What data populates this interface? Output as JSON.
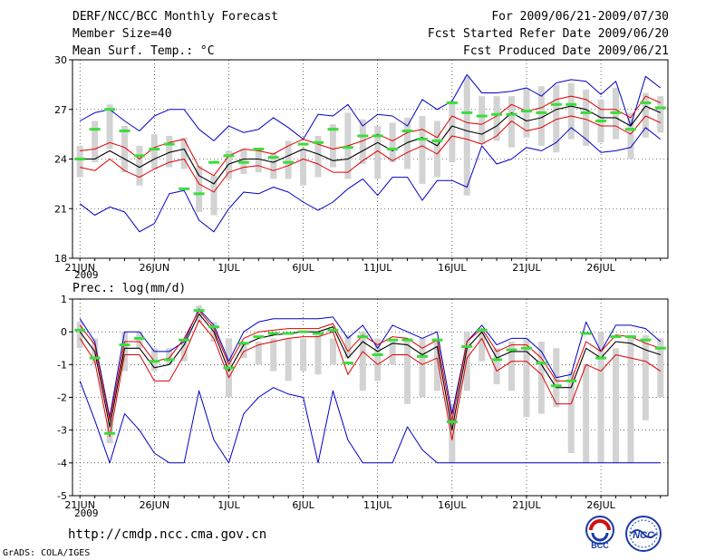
{
  "header": {
    "title": "DERF/NCC/BCC Monthly Forecast",
    "member_size": "Member Size=40",
    "variable": "Mean Surf. Temp.: °C",
    "period": "For 2009/06/21-2009/07/30",
    "started": "Fcst Started Refer Date 2009/06/20",
    "produced": "Fcst Produced Date 2009/06/21"
  },
  "footer": {
    "url": "http://cmdp.ncc.cma.gov.cn",
    "grads": "GrADS: COLA/IGES",
    "logo_bcc": "BCC",
    "logo_ncc": "NCC"
  },
  "colors": {
    "box": "#d3d3d3",
    "median": "#3cdc3c",
    "mean": "#000000",
    "std": "#e00000",
    "range": "#0000c8",
    "grid": "#000000"
  },
  "chart_data": [
    {
      "type": "line",
      "panel": "temperature",
      "title": "",
      "ylabel": "",
      "ylim": [
        18,
        30
      ],
      "yticks": [
        18,
        21,
        24,
        27,
        30
      ],
      "xlim": [
        0.5,
        40.5
      ],
      "xtick_days": [
        1,
        6,
        11,
        16,
        21,
        26,
        31,
        36
      ],
      "xtick_labels": [
        "21JUN",
        "26JUN",
        "1JUL",
        "6JUL",
        "11JUL",
        "16JUL",
        "21JUL",
        "26JUL"
      ],
      "year_label": "2009",
      "days": [
        1,
        2,
        3,
        4,
        5,
        6,
        7,
        8,
        9,
        10,
        11,
        12,
        13,
        14,
        15,
        16,
        17,
        18,
        19,
        20,
        21,
        22,
        23,
        24,
        25,
        26,
        27,
        28,
        29,
        30,
        31,
        32,
        33,
        34,
        35,
        36,
        37,
        38,
        39,
        40
      ],
      "series": [
        {
          "name": "box_top",
          "values": [
            24.8,
            26.3,
            27.3,
            26.0,
            24.8,
            25.5,
            25.4,
            25.3,
            23.6,
            23.0,
            24.5,
            24.6,
            24.6,
            24.4,
            25.1,
            24.6,
            25.4,
            26.1,
            26.8,
            26.4,
            26.0,
            26.2,
            26.5,
            26.6,
            26.3,
            27.5,
            29.0,
            27.8,
            27.8,
            27.8,
            28.3,
            28.4,
            28.5,
            28.6,
            28.2,
            27.6,
            28.3,
            26.8,
            28.0,
            27.8
          ]
        },
        {
          "name": "box_bottom",
          "values": [
            22.9,
            23.8,
            24.6,
            23.2,
            22.4,
            23.4,
            23.5,
            23.4,
            20.8,
            20.6,
            22.8,
            23.1,
            23.2,
            22.8,
            22.8,
            22.4,
            22.9,
            23.5,
            22.8,
            23.7,
            22.8,
            23.8,
            23.4,
            22.5,
            22.9,
            23.8,
            21.8,
            24.9,
            25.1,
            24.7,
            25.3,
            24.8,
            24.4,
            25.2,
            24.8,
            25.0,
            25.2,
            24.0,
            25.3,
            25.6
          ]
        },
        {
          "name": "median",
          "values": [
            24.0,
            25.8,
            27.0,
            25.7,
            24.2,
            24.6,
            24.9,
            22.2,
            21.9,
            23.8,
            24.2,
            23.8,
            24.6,
            24.1,
            23.8,
            24.9,
            25.0,
            25.8,
            24.7,
            25.4,
            25.4,
            24.6,
            25.7,
            25.2,
            25.1,
            27.4,
            26.8,
            26.6,
            26.7,
            26.7,
            26.9,
            26.8,
            27.3,
            27.3,
            26.8,
            26.3,
            26.8,
            25.8,
            27.4,
            27.1
          ]
        },
        {
          "name": "mean",
          "values": [
            24.0,
            24.0,
            24.5,
            24.0,
            23.5,
            24.0,
            24.4,
            24.6,
            23.0,
            22.5,
            23.7,
            24.0,
            24.0,
            23.8,
            24.2,
            24.6,
            24.3,
            23.9,
            24.0,
            24.5,
            25.0,
            24.5,
            25.0,
            25.3,
            24.8,
            26.0,
            25.7,
            25.5,
            26.0,
            26.8,
            26.3,
            26.5,
            27.0,
            27.2,
            27.0,
            26.5,
            26.5,
            26.0,
            27.2,
            26.8
          ]
        },
        {
          "name": "mean_plus_std",
          "values": [
            24.5,
            24.6,
            25.0,
            24.7,
            24.0,
            24.7,
            25.0,
            25.2,
            23.5,
            23.0,
            24.2,
            24.6,
            24.5,
            24.3,
            24.8,
            25.2,
            24.9,
            24.6,
            24.8,
            25.1,
            25.5,
            25.1,
            25.6,
            25.8,
            25.3,
            26.6,
            26.2,
            26.1,
            26.6,
            27.3,
            26.9,
            27.1,
            27.6,
            27.8,
            27.6,
            27.0,
            27.0,
            26.5,
            27.8,
            27.4
          ]
        },
        {
          "name": "mean_minus_std",
          "values": [
            23.5,
            23.3,
            24.0,
            23.3,
            22.9,
            23.4,
            23.8,
            24.0,
            22.5,
            22.0,
            23.2,
            23.5,
            23.6,
            23.3,
            23.6,
            24.0,
            23.7,
            23.2,
            23.2,
            23.9,
            24.5,
            23.9,
            24.4,
            24.8,
            24.3,
            25.4,
            25.2,
            24.9,
            25.4,
            26.3,
            25.7,
            25.9,
            26.4,
            26.6,
            26.4,
            26.0,
            26.0,
            25.5,
            26.6,
            26.2
          ]
        },
        {
          "name": "max",
          "values": [
            26.3,
            26.8,
            27.0,
            26.3,
            25.7,
            26.6,
            27.0,
            27.0,
            25.8,
            25.1,
            26.0,
            25.6,
            25.8,
            26.5,
            25.9,
            25.2,
            26.7,
            26.6,
            27.3,
            26.0,
            26.7,
            26.6,
            26.0,
            27.6,
            27.0,
            27.5,
            29.1,
            28.0,
            28.0,
            28.1,
            28.3,
            27.8,
            28.6,
            28.8,
            28.7,
            27.9,
            28.7,
            26.0,
            29.0,
            28.3
          ]
        },
        {
          "name": "min",
          "values": [
            21.3,
            20.6,
            21.1,
            20.8,
            19.6,
            20.1,
            21.9,
            22.1,
            20.3,
            19.6,
            21.0,
            22.0,
            21.9,
            22.3,
            22.0,
            21.4,
            20.9,
            21.4,
            22.2,
            22.8,
            21.8,
            22.9,
            22.9,
            21.5,
            22.7,
            22.7,
            22.3,
            24.8,
            23.7,
            24.0,
            24.7,
            24.5,
            25.0,
            25.9,
            25.2,
            24.4,
            24.5,
            24.7,
            25.9,
            25.2
          ]
        }
      ]
    },
    {
      "type": "line",
      "panel": "precipitation",
      "title": "Prec.: log(mm/d)",
      "ylabel": "",
      "ylim": [
        -5,
        1
      ],
      "yticks": [
        -5,
        -4,
        -3,
        -2,
        -1,
        0,
        1
      ],
      "xlim": [
        0.5,
        40.5
      ],
      "xtick_days": [
        1,
        6,
        11,
        16,
        21,
        26,
        31,
        36
      ],
      "xtick_labels": [
        "21JUN",
        "26JUN",
        "1JUL",
        "6JUL",
        "11JUL",
        "16JUL",
        "21JUL",
        "26JUL"
      ],
      "year_label": "2009",
      "days": [
        1,
        2,
        3,
        4,
        5,
        6,
        7,
        8,
        9,
        10,
        11,
        12,
        13,
        14,
        15,
        16,
        17,
        18,
        19,
        20,
        21,
        22,
        23,
        24,
        25,
        26,
        27,
        28,
        29,
        30,
        31,
        32,
        33,
        34,
        35,
        36,
        37,
        38,
        39,
        40
      ],
      "series": [
        {
          "name": "box_top",
          "values": [
            0.3,
            -0.2,
            -2.7,
            0.0,
            0.0,
            -0.5,
            -0.5,
            -0.3,
            0.8,
            0.3,
            -0.2,
            -0.3,
            -0.3,
            -0.2,
            -0.2,
            -0.2,
            -0.1,
            -0.2,
            -0.1,
            0.0,
            -0.2,
            -0.3,
            -0.2,
            -0.2,
            -0.2,
            -2.2,
            0.0,
            0.1,
            -0.5,
            -0.3,
            -0.2,
            -0.3,
            -0.5,
            -1.2,
            -1.0,
            0.0,
            -0.5,
            -0.1,
            -0.1,
            -0.2
          ]
        },
        {
          "name": "box_bottom",
          "values": [
            -0.5,
            -1.0,
            -3.4,
            -1.2,
            -0.5,
            -1.2,
            -1.0,
            -0.9,
            0.3,
            -0.3,
            -2.0,
            -0.8,
            -1.0,
            -1.2,
            -1.5,
            -1.2,
            -1.3,
            -1.0,
            -0.8,
            -1.8,
            -1.5,
            -1.0,
            -2.2,
            -2.0,
            -1.8,
            -4.0,
            -1.8,
            -0.9,
            -1.6,
            -1.8,
            -2.6,
            -2.5,
            -2.3,
            -3.7,
            -4.0,
            -4.0,
            -4.0,
            -4.0,
            -2.7,
            -2.0
          ]
        },
        {
          "name": "median",
          "values": [
            0.05,
            -0.8,
            -3.1,
            -0.4,
            -0.2,
            -0.9,
            -0.85,
            -0.25,
            0.65,
            0.15,
            -1.1,
            -0.35,
            -0.15,
            -0.05,
            -0.05,
            0.0,
            -0.05,
            0.05,
            -0.95,
            -0.15,
            -0.7,
            -0.25,
            -0.25,
            -0.75,
            -0.25,
            -2.75,
            -0.45,
            0.05,
            -0.85,
            -0.55,
            -0.5,
            -0.95,
            -1.65,
            -1.5,
            -0.05,
            -0.8,
            -0.15,
            -0.15,
            -0.25,
            -0.5
          ]
        },
        {
          "name": "mean",
          "values": [
            0.0,
            -0.6,
            -2.9,
            -0.5,
            -0.5,
            -1.1,
            -1.0,
            -0.4,
            0.55,
            0.0,
            -1.2,
            -0.4,
            -0.2,
            -0.1,
            -0.05,
            0.0,
            0.0,
            0.15,
            -0.8,
            -0.3,
            -0.6,
            -0.35,
            -0.4,
            -0.7,
            -0.45,
            -3.0,
            -0.5,
            0.0,
            -0.8,
            -0.6,
            -0.6,
            -1.0,
            -1.7,
            -1.7,
            -0.5,
            -0.8,
            -0.3,
            -0.35,
            -0.55,
            -0.7
          ]
        },
        {
          "name": "mean_plus_std",
          "values": [
            0.2,
            -0.4,
            -2.7,
            -0.3,
            -0.3,
            -0.9,
            -0.8,
            -0.2,
            0.65,
            0.1,
            -1.0,
            -0.2,
            0.0,
            0.05,
            0.1,
            0.1,
            0.1,
            0.25,
            -0.6,
            -0.1,
            -0.4,
            -0.15,
            -0.2,
            -0.5,
            -0.25,
            -2.7,
            -0.3,
            0.1,
            -0.6,
            -0.4,
            -0.4,
            -0.8,
            -1.5,
            -1.5,
            -0.3,
            -0.6,
            -0.1,
            -0.15,
            -0.35,
            -0.5
          ]
        },
        {
          "name": "mean_minus_std",
          "values": [
            -0.2,
            -0.9,
            -3.2,
            -0.7,
            -0.7,
            -1.5,
            -1.5,
            -0.7,
            0.35,
            -0.2,
            -1.4,
            -0.6,
            -0.4,
            -0.3,
            -0.2,
            -0.15,
            -0.15,
            0.0,
            -1.3,
            -0.6,
            -1.0,
            -0.7,
            -0.7,
            -1.0,
            -0.8,
            -3.3,
            -0.8,
            -0.2,
            -1.2,
            -0.9,
            -0.9,
            -1.3,
            -2.2,
            -2.2,
            -1.0,
            -1.2,
            -0.7,
            -0.8,
            -0.9,
            -1.2
          ]
        },
        {
          "name": "max",
          "values": [
            0.4,
            -0.3,
            -2.6,
            0.0,
            0.0,
            -0.6,
            -0.6,
            -0.3,
            0.7,
            0.2,
            -0.9,
            0.0,
            0.3,
            0.4,
            0.4,
            0.4,
            0.4,
            0.45,
            -0.2,
            0.2,
            -0.5,
            0.2,
            0.0,
            -0.2,
            0.0,
            -2.5,
            -0.3,
            0.2,
            -0.4,
            -0.2,
            -0.2,
            -0.6,
            -1.4,
            -1.3,
            0.3,
            -0.6,
            0.2,
            0.2,
            0.1,
            -0.3
          ]
        },
        {
          "name": "min",
          "values": [
            -1.5,
            -2.7,
            -4.0,
            -2.5,
            -3.0,
            -3.7,
            -4.0,
            -4.0,
            -1.8,
            -3.3,
            -4.0,
            -2.5,
            -2.0,
            -1.7,
            -1.9,
            -2.0,
            -4.0,
            -1.8,
            -3.3,
            -4.0,
            -4.0,
            -4.0,
            -2.9,
            -3.6,
            -4.0,
            -4.0,
            -4.0,
            -4.0,
            -4.0,
            -4.0,
            -4.0,
            -4.0,
            -4.0,
            -4.0,
            -4.0,
            -4.0,
            -4.0,
            -4.0,
            -4.0,
            -4.0
          ]
        }
      ]
    }
  ]
}
